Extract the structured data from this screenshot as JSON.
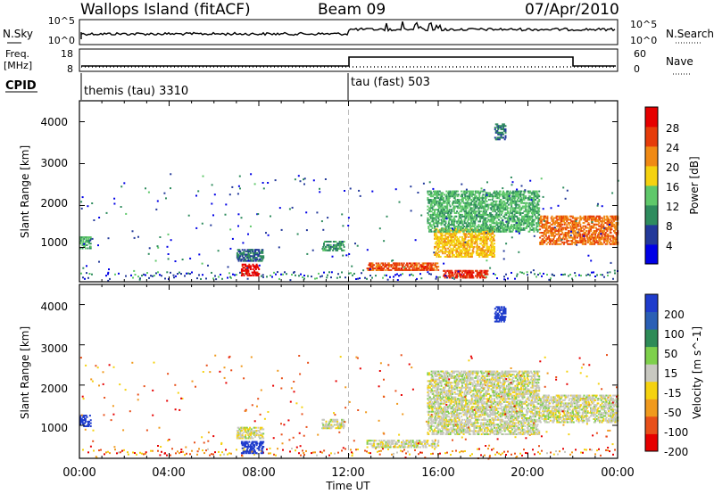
{
  "header": {
    "title": "Wallops Island (fitACF)",
    "beam": "Beam 09",
    "date": "07/Apr/2010"
  },
  "noise_panel": {
    "left_label": "N.Sky",
    "left_ticks": [
      "10^5",
      "10^0"
    ],
    "right_label": "N.Search",
    "right_ticks": [
      "10^5",
      "10^0"
    ]
  },
  "freq_panel": {
    "left_label_1": "Freq.",
    "left_label_2": "[MHz]",
    "left_ticks": [
      "18",
      "8"
    ],
    "right_label": "Nave",
    "right_ticks": [
      "60",
      "0"
    ]
  },
  "cpid_panel": {
    "label": "CPID",
    "modes": [
      {
        "text": "themis (tau) 3310",
        "start_hour": 0.0
      },
      {
        "text": "tau (fast) 503",
        "start_hour": 12.0
      }
    ]
  },
  "power_panel": {
    "ylabel": "Slant Range [km]",
    "yticks": [
      "1000",
      "2000",
      "3000",
      "4000"
    ],
    "colorbar_label": "Power [dB]",
    "colorbar_ticks": [
      "4",
      "8",
      "12",
      "16",
      "20",
      "24",
      "28"
    ],
    "colors": [
      "#0000e6",
      "#23399a",
      "#2f8c5e",
      "#5fc86a",
      "#f5d20f",
      "#f08a14",
      "#e63c0a",
      "#e60000"
    ]
  },
  "velocity_panel": {
    "ylabel": "Slant Range [km]",
    "yticks": [
      "1000",
      "2000",
      "3000",
      "4000"
    ],
    "colorbar_label": "Velocity [m s^-1]",
    "colorbar_ticks": [
      "200",
      "100",
      "50",
      "15",
      "-15",
      "-50",
      "-100",
      "-200"
    ],
    "colors": [
      "#1f3ccc",
      "#2a5fb5",
      "#2e8b57",
      "#7ed04b",
      "#c8c8c0",
      "#f5d20f",
      "#f09a1e",
      "#e8501a",
      "#e60000"
    ]
  },
  "xaxis": {
    "ticks": [
      "00:00",
      "04:00",
      "08:00",
      "12:00",
      "16:00",
      "20:00",
      "00:00"
    ],
    "label": "Time UT"
  },
  "chart_data": [
    {
      "type": "heatmap",
      "title": "Power",
      "xlabel": "Time UT",
      "ylabel": "Slant Range [km]",
      "xlim": [
        0,
        24
      ],
      "ylim": [
        180,
        4500
      ],
      "colorbar": {
        "label": "Power [dB]",
        "range": [
          0,
          30
        ]
      },
      "regions": [
        {
          "x": [
            0.0,
            0.5
          ],
          "y": [
            1000,
            1300
          ],
          "value": 12
        },
        {
          "x": [
            7.0,
            8.2
          ],
          "y": [
            700,
            1000
          ],
          "value": 8
        },
        {
          "x": [
            7.2,
            8.0
          ],
          "y": [
            350,
            650
          ],
          "value": 28
        },
        {
          "x": [
            10.8,
            11.8
          ],
          "y": [
            950,
            1200
          ],
          "value": 10
        },
        {
          "x": [
            12.8,
            16.0
          ],
          "y": [
            480,
            680
          ],
          "value": 24
        },
        {
          "x": [
            15.8,
            18.5
          ],
          "y": [
            800,
            1500
          ],
          "value": 18
        },
        {
          "x": [
            16.2,
            18.2
          ],
          "y": [
            300,
            500
          ],
          "value": 26
        },
        {
          "x": [
            15.5,
            20.5
          ],
          "y": [
            1400,
            2400
          ],
          "value": 12
        },
        {
          "x": [
            20.5,
            24.0
          ],
          "y": [
            1100,
            1800
          ],
          "value": 22
        },
        {
          "x": [
            18.5,
            19.0
          ],
          "y": [
            3600,
            4000
          ],
          "value": 8
        }
      ]
    },
    {
      "type": "heatmap",
      "title": "Velocity",
      "xlabel": "Time UT",
      "ylabel": "Slant Range [km]",
      "xlim": [
        0,
        24
      ],
      "ylim": [
        180,
        4500
      ],
      "colorbar": {
        "label": "Velocity [m s^-1]",
        "range": [
          -200,
          200
        ]
      },
      "regions": [
        {
          "x": [
            0.0,
            0.5
          ],
          "y": [
            1000,
            1300
          ],
          "value": 200
        },
        {
          "x": [
            7.2,
            8.2
          ],
          "y": [
            330,
            650
          ],
          "value": 200
        },
        {
          "x": [
            7.0,
            8.2
          ],
          "y": [
            700,
            1000
          ],
          "value": 0
        },
        {
          "x": [
            10.8,
            11.8
          ],
          "y": [
            950,
            1200
          ],
          "value": 0
        },
        {
          "x": [
            12.8,
            16.0
          ],
          "y": [
            480,
            680
          ],
          "value": 0
        },
        {
          "x": [
            15.5,
            20.5
          ],
          "y": [
            800,
            2400
          ],
          "value": 0
        },
        {
          "x": [
            20.5,
            24.0
          ],
          "y": [
            1100,
            1800
          ],
          "value": 0
        },
        {
          "x": [
            18.5,
            19.0
          ],
          "y": [
            3600,
            4000
          ],
          "value": 200
        }
      ]
    }
  ]
}
